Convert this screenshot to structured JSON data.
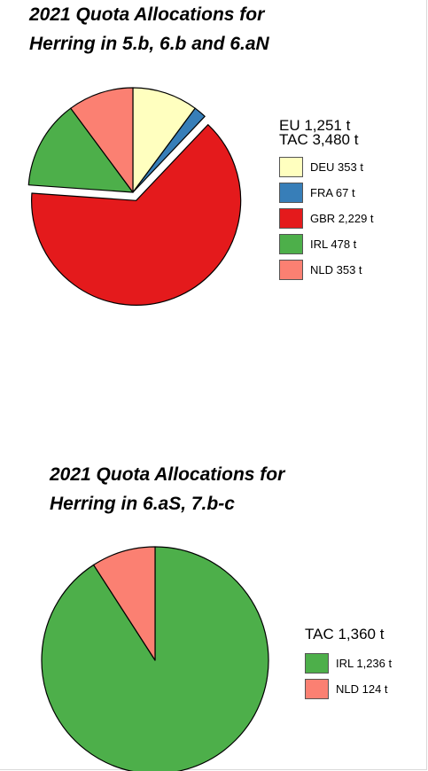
{
  "chart_data": [
    {
      "type": "pie",
      "title": [
        "2021 Quota Allocations for",
        "Herring in 5.b, 6.b and 6.aN"
      ],
      "legend_header": [
        "EU 1,251 t",
        "TAC 3,480 t"
      ],
      "legend_placement": "right",
      "exploded": "GBR",
      "slices": [
        {
          "name": "DEU",
          "value": 353,
          "label": "DEU 353 t",
          "color": "#ffffbf"
        },
        {
          "name": "FRA",
          "value": 67,
          "label": "FRA 67 t",
          "color": "#377eb8"
        },
        {
          "name": "GBR",
          "value": 2229,
          "label": "GBR 2,229 t",
          "color": "#e41a1c"
        },
        {
          "name": "IRL",
          "value": 478,
          "label": "IRL 478 t",
          "color": "#4daf4a"
        },
        {
          "name": "NLD",
          "value": 353,
          "label": "NLD 353 t",
          "color": "#fb8072"
        }
      ]
    },
    {
      "type": "pie",
      "title": [
        "2021 Quota Allocations for",
        "Herring in 6.aS, 7.b-c"
      ],
      "legend_header": [
        "TAC 1,360 t"
      ],
      "legend_placement": "right",
      "slices": [
        {
          "name": "IRL",
          "value": 1236,
          "label": "IRL 1,236 t",
          "color": "#4daf4a"
        },
        {
          "name": "NLD",
          "value": 124,
          "label": "NLD 124 t",
          "color": "#fb8072"
        }
      ]
    }
  ]
}
